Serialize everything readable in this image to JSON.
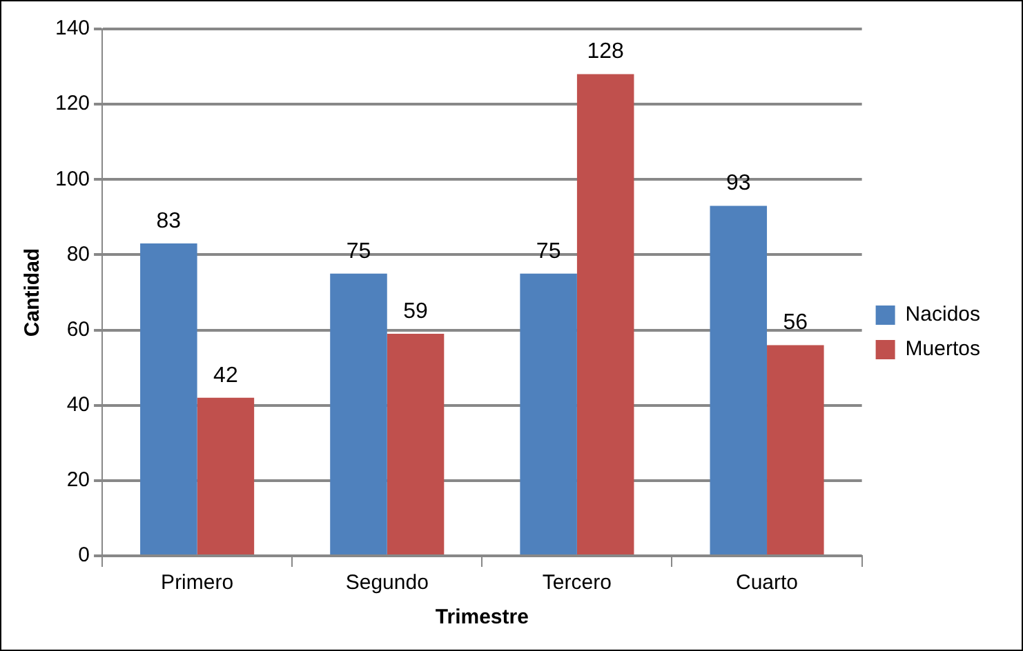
{
  "chart_data": {
    "type": "bar",
    "xlabel": "Trimestre",
    "ylabel": "Cantidad",
    "categories": [
      "Primero",
      "Segundo",
      "Tercero",
      "Cuarto"
    ],
    "series": [
      {
        "name": "Nacidos",
        "color": "#4f81bd",
        "values": [
          83,
          75,
          75,
          93
        ]
      },
      {
        "name": "Muertos",
        "color": "#c0504d",
        "values": [
          42,
          59,
          128,
          56
        ]
      }
    ],
    "ylim": [
      0,
      140
    ],
    "yticks": [
      0,
      20,
      40,
      60,
      80,
      100,
      120,
      140
    ],
    "grid": "y",
    "legend": "right",
    "data_labels": true
  }
}
